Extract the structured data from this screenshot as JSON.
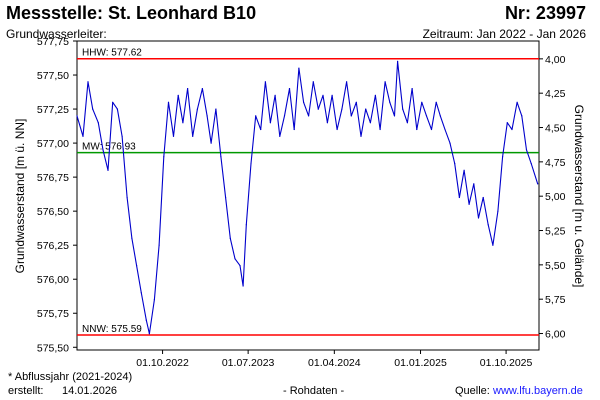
{
  "header": {
    "title": "Messstelle: St. Leonhard B10",
    "number": "Nr: 23997",
    "subtitle_left": "Grundwasserleiter:",
    "period": "Zeitraum: Jan 2022 - Jan 2026"
  },
  "footer": {
    "footnote": "* Abflussjahr (2021-2024)",
    "created_label": "erstellt:",
    "created_date": "14.01.2026",
    "mode": "- Rohdaten -",
    "source_label": "Quelle:",
    "source_link": "www.lfu.bayern.de"
  },
  "chart_data": {
    "type": "line",
    "ylabel_left": "Grundwasserstand [m ü. NN]",
    "ylabel_right": "Grundwasserstand [m u. Gelände]",
    "ylim_left": [
      575.48,
      577.75
    ],
    "yticks_left": [
      "577,75",
      "577,50",
      "577,25",
      "577,00",
      "576,75",
      "576,50",
      "576,25",
      "576,00",
      "575,75",
      "575,50"
    ],
    "ylim_right": [
      6.12,
      3.87
    ],
    "yticks_right": [
      "4,00",
      "4,25",
      "4,50",
      "4,75",
      "5,00",
      "5,25",
      "5,50",
      "5,75",
      "6,00"
    ],
    "xlim": [
      "2022-01-01",
      "2026-01-14"
    ],
    "xticks": [
      {
        "date": "2022-10-01",
        "label": "01.10.2022"
      },
      {
        "date": "2023-07-01",
        "label": "01.07.2023"
      },
      {
        "date": "2024-04-01",
        "label": "01.04.2024"
      },
      {
        "date": "2025-01-01",
        "label": "01.01.2025"
      },
      {
        "date": "2025-10-01",
        "label": "01.10.2025"
      }
    ],
    "reference_lines": [
      {
        "name": "HHW",
        "label": "HHW: 577.62",
        "value": 577.62,
        "color": "#ff0000"
      },
      {
        "name": "MW",
        "label": "MW: 576.93",
        "value": 576.93,
        "color": "#009900"
      },
      {
        "name": "NNW",
        "label": "NNW: 575.59",
        "value": 575.59,
        "color": "#ff0000"
      }
    ],
    "series": [
      {
        "color": "#0000cc",
        "points": [
          [
            "2022-01-01",
            577.2
          ],
          [
            "2022-01-20",
            577.05
          ],
          [
            "2022-02-05",
            577.45
          ],
          [
            "2022-02-20",
            577.25
          ],
          [
            "2022-03-10",
            577.15
          ],
          [
            "2022-03-25",
            576.95
          ],
          [
            "2022-04-10",
            576.8
          ],
          [
            "2022-04-25",
            577.3
          ],
          [
            "2022-05-10",
            577.25
          ],
          [
            "2022-05-25",
            577.05
          ],
          [
            "2022-06-10",
            576.6
          ],
          [
            "2022-06-25",
            576.3
          ],
          [
            "2022-07-10",
            576.1
          ],
          [
            "2022-07-25",
            575.9
          ],
          [
            "2022-08-10",
            575.7
          ],
          [
            "2022-08-20",
            575.6
          ],
          [
            "2022-09-05",
            575.85
          ],
          [
            "2022-09-20",
            576.25
          ],
          [
            "2022-10-05",
            576.9
          ],
          [
            "2022-10-20",
            577.3
          ],
          [
            "2022-11-05",
            577.05
          ],
          [
            "2022-11-20",
            577.35
          ],
          [
            "2022-12-05",
            577.15
          ],
          [
            "2022-12-20",
            577.4
          ],
          [
            "2023-01-05",
            577.05
          ],
          [
            "2023-01-20",
            577.25
          ],
          [
            "2023-02-05",
            577.4
          ],
          [
            "2023-02-20",
            577.2
          ],
          [
            "2023-03-05",
            577.0
          ],
          [
            "2023-03-20",
            577.25
          ],
          [
            "2023-04-05",
            576.9
          ],
          [
            "2023-04-20",
            576.6
          ],
          [
            "2023-05-05",
            576.3
          ],
          [
            "2023-05-20",
            576.15
          ],
          [
            "2023-06-05",
            576.1
          ],
          [
            "2023-06-15",
            575.95
          ],
          [
            "2023-06-25",
            576.4
          ],
          [
            "2023-07-10",
            576.85
          ],
          [
            "2023-07-25",
            577.2
          ],
          [
            "2023-08-10",
            577.1
          ],
          [
            "2023-08-25",
            577.45
          ],
          [
            "2023-09-10",
            577.15
          ],
          [
            "2023-09-25",
            577.35
          ],
          [
            "2023-10-10",
            577.05
          ],
          [
            "2023-10-25",
            577.2
          ],
          [
            "2023-11-10",
            577.4
          ],
          [
            "2023-11-25",
            577.1
          ],
          [
            "2023-12-10",
            577.55
          ],
          [
            "2023-12-25",
            577.3
          ],
          [
            "2024-01-10",
            577.2
          ],
          [
            "2024-01-25",
            577.45
          ],
          [
            "2024-02-10",
            577.25
          ],
          [
            "2024-02-25",
            577.35
          ],
          [
            "2024-03-10",
            577.15
          ],
          [
            "2024-03-25",
            577.35
          ],
          [
            "2024-04-10",
            577.1
          ],
          [
            "2024-04-25",
            577.25
          ],
          [
            "2024-05-10",
            577.45
          ],
          [
            "2024-05-25",
            577.2
          ],
          [
            "2024-06-10",
            577.3
          ],
          [
            "2024-06-25",
            577.05
          ],
          [
            "2024-07-10",
            577.25
          ],
          [
            "2024-07-25",
            577.15
          ],
          [
            "2024-08-10",
            577.35
          ],
          [
            "2024-08-25",
            577.1
          ],
          [
            "2024-09-10",
            577.45
          ],
          [
            "2024-09-25",
            577.3
          ],
          [
            "2024-10-10",
            577.2
          ],
          [
            "2024-10-20",
            577.6
          ],
          [
            "2024-11-05",
            577.25
          ],
          [
            "2024-11-20",
            577.15
          ],
          [
            "2024-12-05",
            577.4
          ],
          [
            "2024-12-20",
            577.1
          ],
          [
            "2025-01-05",
            577.3
          ],
          [
            "2025-01-20",
            577.2
          ],
          [
            "2025-02-05",
            577.1
          ],
          [
            "2025-02-20",
            577.3
          ],
          [
            "2025-03-05",
            577.2
          ],
          [
            "2025-03-20",
            577.1
          ],
          [
            "2025-04-05",
            577.0
          ],
          [
            "2025-04-20",
            576.85
          ],
          [
            "2025-05-05",
            576.6
          ],
          [
            "2025-05-20",
            576.8
          ],
          [
            "2025-06-05",
            576.55
          ],
          [
            "2025-06-20",
            576.7
          ],
          [
            "2025-07-05",
            576.45
          ],
          [
            "2025-07-20",
            576.6
          ],
          [
            "2025-08-05",
            576.4
          ],
          [
            "2025-08-20",
            576.25
          ],
          [
            "2025-09-05",
            576.5
          ],
          [
            "2025-09-20",
            576.9
          ],
          [
            "2025-10-05",
            577.15
          ],
          [
            "2025-10-20",
            577.1
          ],
          [
            "2025-11-05",
            577.3
          ],
          [
            "2025-11-20",
            577.2
          ],
          [
            "2025-12-05",
            576.95
          ],
          [
            "2025-12-20",
            576.85
          ],
          [
            "2026-01-10",
            576.7
          ]
        ]
      }
    ],
    "grid": "none",
    "legend": "none"
  }
}
